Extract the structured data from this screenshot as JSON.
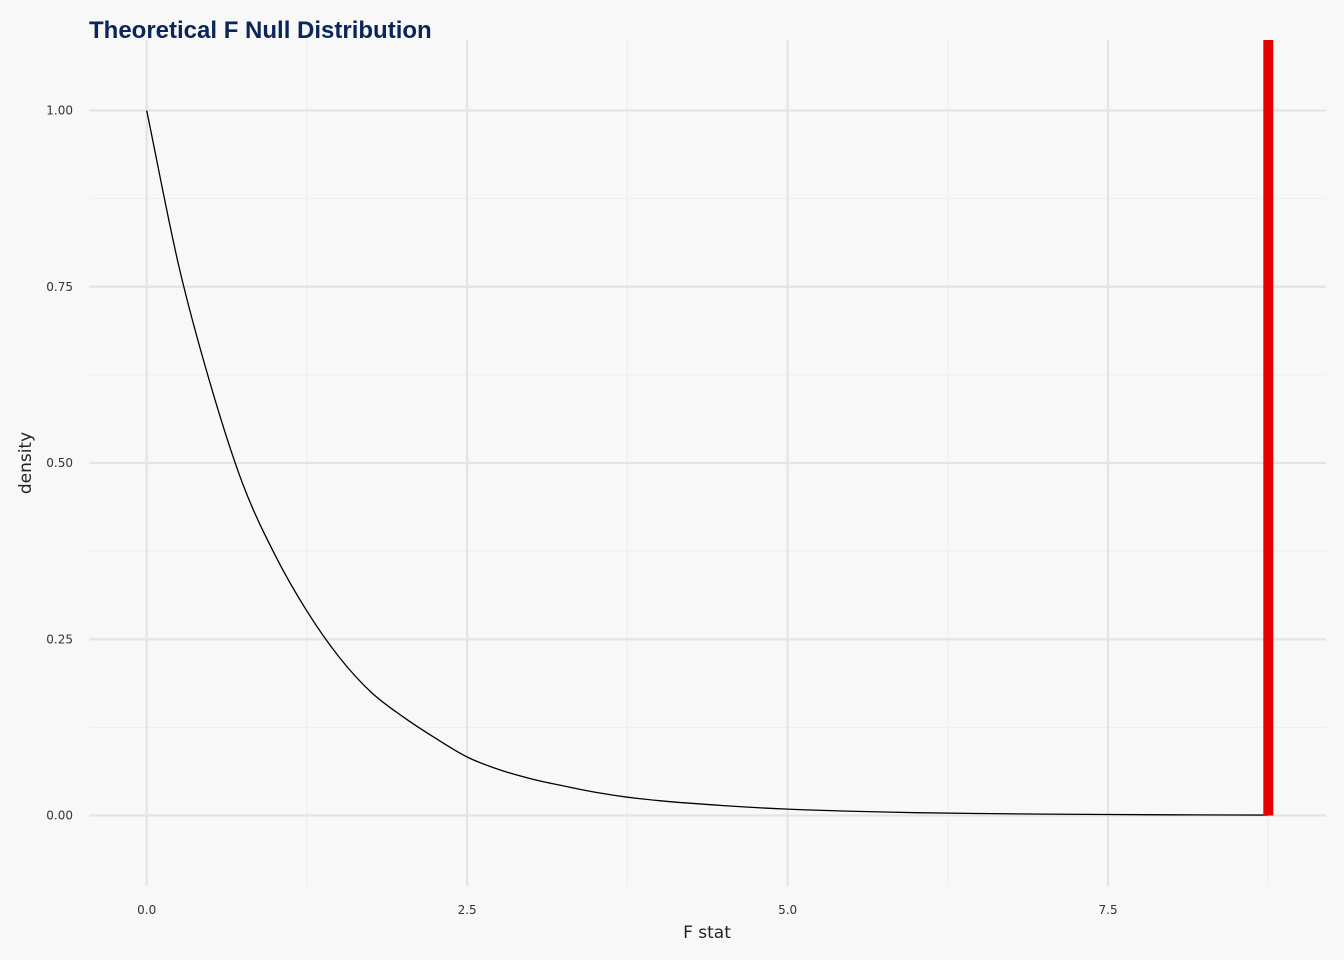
{
  "chart_data": {
    "type": "line",
    "title": "Theoretical F Null Distribution",
    "xlabel": "F stat",
    "ylabel": "density",
    "xlim": [
      -0.45,
      9.2
    ],
    "ylim": [
      -0.1,
      1.1
    ],
    "x_ticks": [
      0,
      2.5,
      5,
      7.5
    ],
    "x_tick_labels": [
      "0.0",
      "2.5",
      "5.0",
      "7.5"
    ],
    "y_ticks": [
      0,
      0.25,
      0.5,
      0.75,
      1
    ],
    "y_tick_labels": [
      "0.00",
      "0.25",
      "0.50",
      "0.75",
      "1.00"
    ],
    "grid": true,
    "legend": "none",
    "series": [
      {
        "x": [
          0,
          0.25,
          0.5,
          0.75,
          1,
          1.25,
          1.5,
          1.75,
          2,
          2.25,
          2.5,
          2.75,
          3,
          3.25,
          3.5,
          3.75,
          4,
          4.5,
          5,
          5.5,
          6,
          6.5,
          7,
          7.5,
          8,
          8.5,
          8.75
        ],
        "y": [
          1.0,
          0.78,
          0.61,
          0.47,
          0.37,
          0.29,
          0.225,
          0.175,
          0.14,
          0.11,
          0.083,
          0.065,
          0.052,
          0.042,
          0.033,
          0.026,
          0.021,
          0.014,
          0.009,
          0.006,
          0.004,
          0.0028,
          0.002,
          0.0014,
          0.001,
          0.0007,
          0.0006
        ]
      }
    ],
    "annotations": [
      {
        "type": "vline",
        "x": 8.75,
        "color": "#e60000"
      }
    ],
    "colors": {
      "background": "#f8f8f8",
      "curve": "#000000",
      "observed_line": "#e60000",
      "title": "#0b2559"
    }
  }
}
